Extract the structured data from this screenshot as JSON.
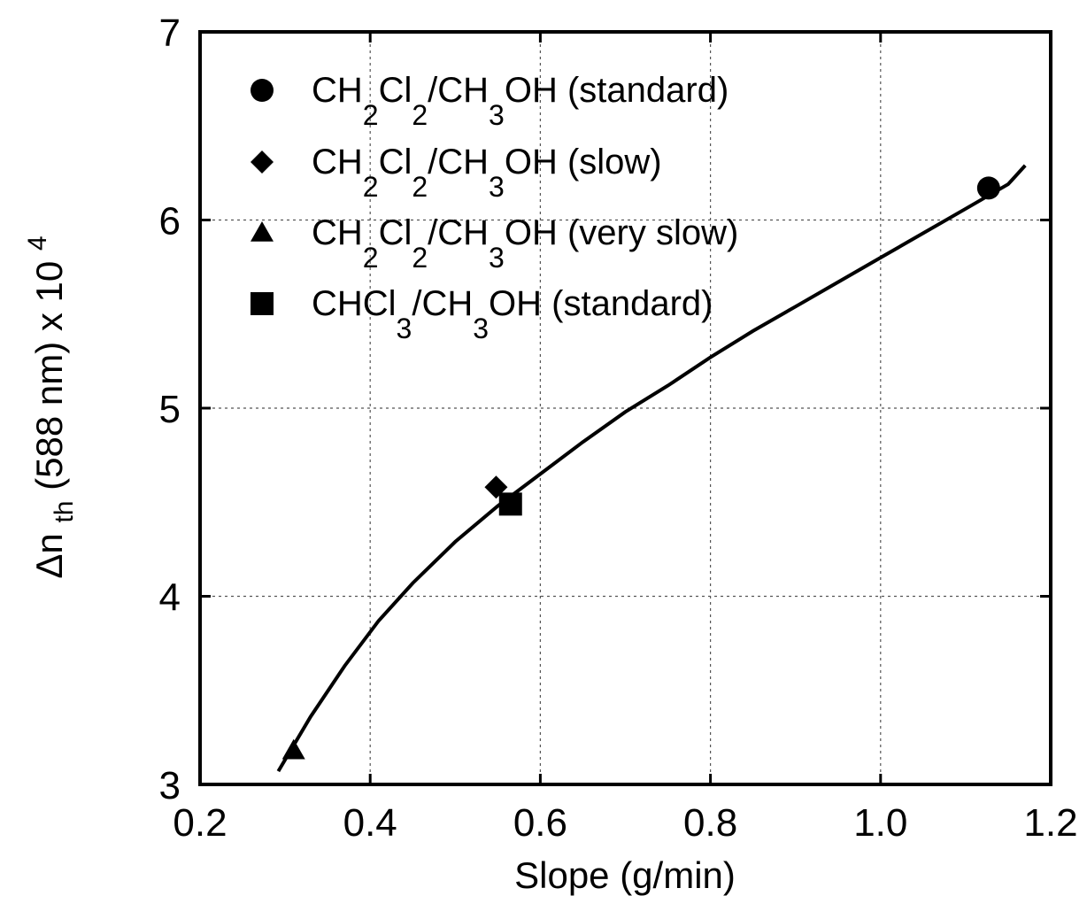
{
  "chart_data": {
    "type": "scatter",
    "xlabel": "Slope (g/min)",
    "ylabel": {
      "prefix": "Δn",
      "subscript": "th",
      "middle": "(588 nm) x 10",
      "superscript": "4"
    },
    "xlim": [
      0.2,
      1.2
    ],
    "ylim": [
      3,
      7
    ],
    "x_ticks": [
      "0.2",
      "0.4",
      "0.6",
      "0.8",
      "1.0",
      "1.2"
    ],
    "y_ticks": [
      "3",
      "4",
      "5",
      "6",
      "7"
    ],
    "grid": true,
    "legend_position": "top-left",
    "series": [
      {
        "name": "CH2Cl2/CH3OH (standard)",
        "label_parts": [
          [
            "CH",
            ""
          ],
          [
            "2",
            "sub"
          ],
          [
            "Cl",
            ""
          ],
          [
            "2",
            "sub"
          ],
          [
            "/CH",
            ""
          ],
          [
            "3",
            "sub"
          ],
          [
            "OH (standard)",
            ""
          ]
        ],
        "marker": "circle",
        "points": [
          {
            "x": 1.127,
            "y": 6.17
          }
        ]
      },
      {
        "name": "CH2Cl2/CH3OH (slow)",
        "label_parts": [
          [
            "CH",
            ""
          ],
          [
            "2",
            "sub"
          ],
          [
            "Cl",
            ""
          ],
          [
            "2",
            "sub"
          ],
          [
            "/CH",
            ""
          ],
          [
            "3",
            "sub"
          ],
          [
            "OH  (slow)",
            ""
          ]
        ],
        "marker": "diamond",
        "points": [
          {
            "x": 0.548,
            "y": 4.58
          }
        ]
      },
      {
        "name": "CH2Cl2/CH3OH (very slow)",
        "label_parts": [
          [
            "CH",
            ""
          ],
          [
            "2",
            "sub"
          ],
          [
            "Cl",
            ""
          ],
          [
            "2",
            "sub"
          ],
          [
            "/CH",
            ""
          ],
          [
            "3",
            "sub"
          ],
          [
            "OH  (very slow)",
            ""
          ]
        ],
        "marker": "triangle",
        "points": [
          {
            "x": 0.31,
            "y": 3.18
          }
        ]
      },
      {
        "name": "CHCl3/CH3OH (standard)",
        "label_parts": [
          [
            "CHCl",
            ""
          ],
          [
            "3",
            "sub"
          ],
          [
            "/CH",
            ""
          ],
          [
            "3",
            "sub"
          ],
          [
            "OH  (standard)",
            ""
          ]
        ],
        "marker": "square",
        "points": [
          {
            "x": 0.565,
            "y": 4.49
          }
        ]
      }
    ],
    "fit_curve": {
      "x": [
        0.292,
        0.33,
        0.37,
        0.41,
        0.45,
        0.5,
        0.55,
        0.6,
        0.65,
        0.7,
        0.75,
        0.8,
        0.85,
        0.9,
        0.95,
        1.0,
        1.05,
        1.1,
        1.15,
        1.17
      ],
      "y": [
        3.07,
        3.36,
        3.63,
        3.87,
        4.07,
        4.29,
        4.48,
        4.65,
        4.82,
        4.98,
        5.12,
        5.27,
        5.41,
        5.54,
        5.67,
        5.8,
        5.93,
        6.06,
        6.19,
        6.29
      ]
    },
    "colors": {
      "ink": "#000000",
      "grid": "#555555",
      "background": "#ffffff"
    }
  }
}
